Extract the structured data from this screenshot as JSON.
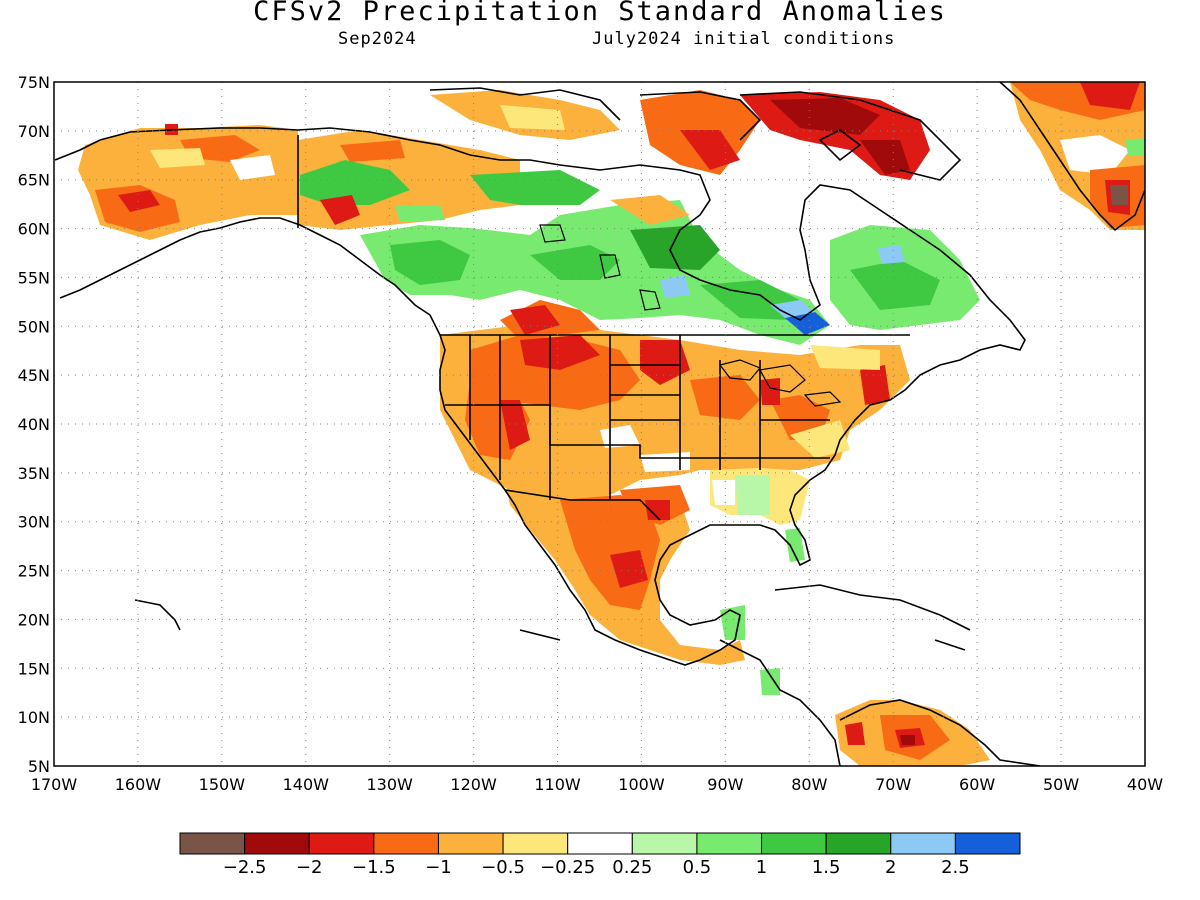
{
  "title": "CFSv2 Precipitation Standard Anomalies",
  "valid_month": "Sep2024",
  "initial_conditions": "July2024 initial conditions",
  "lat_labels": [
    "75N",
    "70N",
    "65N",
    "60N",
    "55N",
    "50N",
    "45N",
    "40N",
    "35N",
    "30N",
    "25N",
    "20N",
    "15N",
    "10N",
    "5N"
  ],
  "lon_labels": [
    "170W",
    "160W",
    "150W",
    "140W",
    "130W",
    "120W",
    "110W",
    "100W",
    "90W",
    "80W",
    "70W",
    "60W",
    "50W",
    "40W"
  ],
  "colorbar": {
    "colors": [
      "#7a5447",
      "#a10a0a",
      "#dd1b14",
      "#f86a14",
      "#fbb13c",
      "#fde67a",
      "#ffffff",
      "#b9f7a8",
      "#78ea6f",
      "#3fc943",
      "#28a528",
      "#8ccaf5",
      "#1560d8"
    ],
    "labels": [
      "-2.5",
      "-2",
      "-1.5",
      "-1",
      "-0.5",
      "-0.25",
      "0.25",
      "0.5",
      "1",
      "1.5",
      "2",
      "2.5"
    ]
  }
}
